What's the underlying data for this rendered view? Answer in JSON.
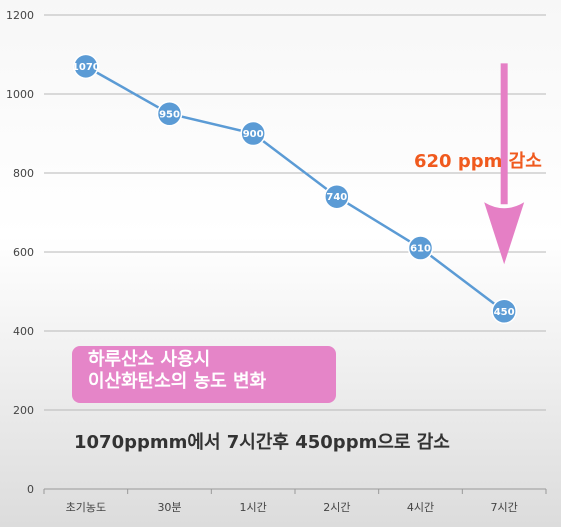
{
  "chart_data": {
    "type": "line",
    "categories": [
      "초기농도",
      "30분",
      "1시간",
      "2시간",
      "4시간",
      "7시간"
    ],
    "values": [
      1070,
      950,
      900,
      740,
      610,
      450
    ],
    "data_labels": [
      "1070",
      "950",
      "900",
      "740",
      "610",
      "450"
    ],
    "yticks": [
      "0",
      "200",
      "400",
      "600",
      "800",
      "1000",
      "1200"
    ],
    "ylim": [
      0,
      1200
    ],
    "grid": true,
    "legend": "none",
    "colors": {
      "line": "#5b9bd5",
      "marker": "#5b9bd5",
      "arrow": "#e57fc5",
      "box": "#e585c8",
      "reduction": "#f05a1e"
    }
  },
  "annotations": {
    "box_line1": "하루산소  사용시",
    "box_line2": "이산화탄소의 농도 변화",
    "reduction": "620 ppm 감소",
    "summary": "1070ppmm에서 7시간후 450ppm으로 감소"
  }
}
